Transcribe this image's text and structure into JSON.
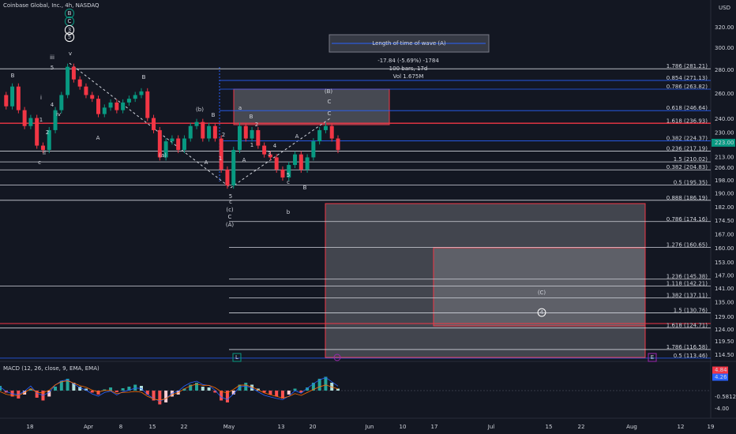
{
  "header": {
    "symbol": "Coinbase Global, Inc., 4h, NASDAQ",
    "currency": "USD",
    "last_price": "223.00"
  },
  "price_axis": [
    "320.00",
    "300.00",
    "280.00",
    "260.00",
    "240.00",
    "230.00",
    "213.00",
    "206.00",
    "198.00",
    "190.00",
    "182.00",
    "174.50",
    "167.00",
    "160.00",
    "153.00",
    "147.00",
    "141.00",
    "135.00",
    "129.00",
    "124.00",
    "119.50",
    "114.50"
  ],
  "time_axis": [
    "18",
    "Apr",
    "8",
    "15",
    "22",
    "May",
    "13",
    "20",
    "Jun",
    "10",
    "17",
    "Jul",
    "15",
    "22",
    "Aug",
    "12",
    "19"
  ],
  "price_series": [
    259,
    250,
    266,
    247,
    235,
    241,
    221,
    218,
    232,
    247,
    259,
    283,
    272,
    266,
    259,
    256,
    244,
    249,
    253,
    247,
    253,
    256,
    259,
    262,
    241,
    232,
    213,
    224,
    226,
    218,
    226,
    235,
    238,
    226,
    235,
    226,
    205,
    195,
    218,
    235,
    226,
    232,
    221,
    215,
    213,
    205,
    200,
    208,
    215,
    205,
    213,
    224,
    232,
    235,
    226,
    218
  ],
  "fib_levels": [
    "1.786 (281.21)",
    "0.854 (271.13)",
    "0.786 (263.82)",
    "0.618 (246.64)",
    "1.618 (236.93)",
    "0.382 (224.37)",
    "0.236 (217.19)",
    "1.5 (210.02)",
    "0.382 (204.83)",
    "0.5 (195.35)",
    "0.888 (186.19)",
    "0.786 (174.16)",
    "1.276 (160.65)",
    "1.236 (145.38)",
    "1.118 (142.21)",
    "1.382 (137.11)",
    "1.5 (130.76)",
    "1.618 (124.71)",
    "1.786 (116.58)",
    "0.5 (113.46)"
  ],
  "measure": {
    "title": "Length of time of wave (A)",
    "change": "-17.84 (-5.69%) -1784",
    "bars": "100 bars, 17d",
    "volume": "Vol 1.675M"
  },
  "wave_labels": [
    "B",
    "C",
    "3",
    "5",
    "iii",
    "v",
    "5",
    "B",
    "B",
    "iv",
    "A",
    "i",
    "ii",
    "c",
    "1",
    "2",
    "4",
    "(b)",
    "(a)",
    "B",
    "2",
    "A",
    "1",
    "a",
    "B",
    "2",
    "1",
    "A",
    "3",
    "4",
    "A",
    "5",
    "c",
    "b",
    "B",
    "C",
    "C",
    "(B)",
    "5",
    "c",
    "(c)",
    "C",
    "(A)",
    "(C)",
    "4",
    "L",
    "E"
  ],
  "macd": {
    "label": "MACD (12, 26, close, 9, EMA, EMA)",
    "axis": [
      "4.84",
      "4.26",
      "-0.5812",
      "-4.00"
    ],
    "histogram": [
      1.2,
      -0.5,
      -1.5,
      -2,
      -1,
      0.5,
      -1.8,
      -2.5,
      -1.5,
      1,
      2.5,
      3,
      2,
      1,
      0.5,
      -0.5,
      -1,
      0.3,
      0.8,
      -0.4,
      0.6,
      1,
      1.5,
      1.2,
      -1,
      -2.5,
      -3.5,
      -3,
      -1.5,
      -1,
      0.5,
      1.5,
      2,
      1,
      0.8,
      -0.5,
      -2.5,
      -3,
      -1,
      1.5,
      2,
      1.5,
      0.5,
      -0.5,
      -1,
      -1.5,
      -2,
      -1,
      0.5,
      -0.5,
      0.8,
      2,
      3,
      3.5,
      2,
      0.5
    ]
  }
}
